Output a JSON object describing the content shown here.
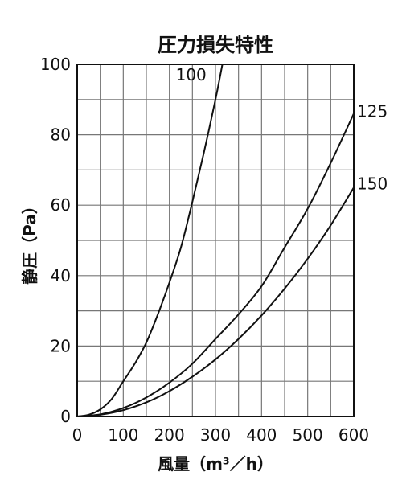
{
  "chart_data": {
    "type": "line",
    "title": "圧力損失特性",
    "xlabel": "風量（m³／h）",
    "ylabel": "静圧（Pa）",
    "xlim": [
      0,
      600
    ],
    "ylim": [
      0,
      100
    ],
    "x_ticks": [
      "0",
      "100",
      "200",
      "300",
      "400",
      "500",
      "600"
    ],
    "y_ticks": [
      "0",
      "20",
      "40",
      "60",
      "80",
      "100"
    ],
    "grid": true,
    "x_grid_step": 50,
    "y_grid_step": 10,
    "series": [
      {
        "name": "100",
        "x": [
          0,
          25,
          50,
          75,
          100,
          125,
          150,
          175,
          200,
          225,
          250,
          275,
          300,
          315
        ],
        "y": [
          0,
          0.5,
          2,
          5,
          10,
          15,
          21,
          29,
          38,
          48,
          61,
          75,
          90,
          100
        ]
      },
      {
        "name": "125",
        "x": [
          0,
          50,
          100,
          150,
          200,
          250,
          300,
          350,
          400,
          450,
          500,
          550,
          600
        ],
        "y": [
          0,
          0.6,
          2.4,
          5.4,
          9.6,
          15,
          22,
          29,
          37,
          48,
          59,
          72,
          86
        ]
      },
      {
        "name": "150",
        "x": [
          0,
          50,
          100,
          150,
          200,
          250,
          300,
          350,
          400,
          450,
          500,
          550,
          600
        ],
        "y": [
          0,
          0.5,
          1.8,
          4,
          7.2,
          11.3,
          16.2,
          22,
          28.7,
          36.3,
          44.8,
          54.3,
          65
        ]
      }
    ]
  }
}
